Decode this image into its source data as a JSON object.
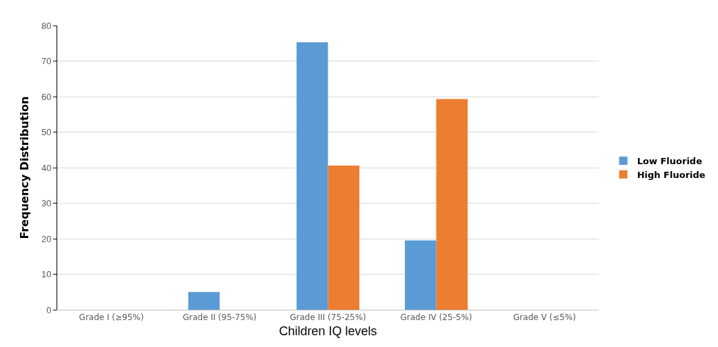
{
  "chart_data": {
    "type": "bar",
    "xlabel": "Children IQ levels",
    "ylabel": "Frequency Distribution",
    "categories": [
      "Grade I (≥95%)",
      "Grade II (95-75%)",
      "Grade III (75-25%)",
      "Grade IV (25-5%)",
      "Grade V (≤5%)"
    ],
    "series": [
      {
        "name": "Low Fluoride",
        "color": "#5b9bd5",
        "values": [
          0,
          5,
          75.3,
          19.5,
          0
        ]
      },
      {
        "name": "High Fluoride",
        "color": "#ed7d31",
        "values": [
          0,
          0,
          40.6,
          59.3,
          0
        ]
      }
    ],
    "ylim": [
      0,
      80
    ],
    "yticks": [
      0,
      10,
      20,
      30,
      40,
      50,
      60,
      70,
      80
    ],
    "grid": "y",
    "legend": "right"
  }
}
